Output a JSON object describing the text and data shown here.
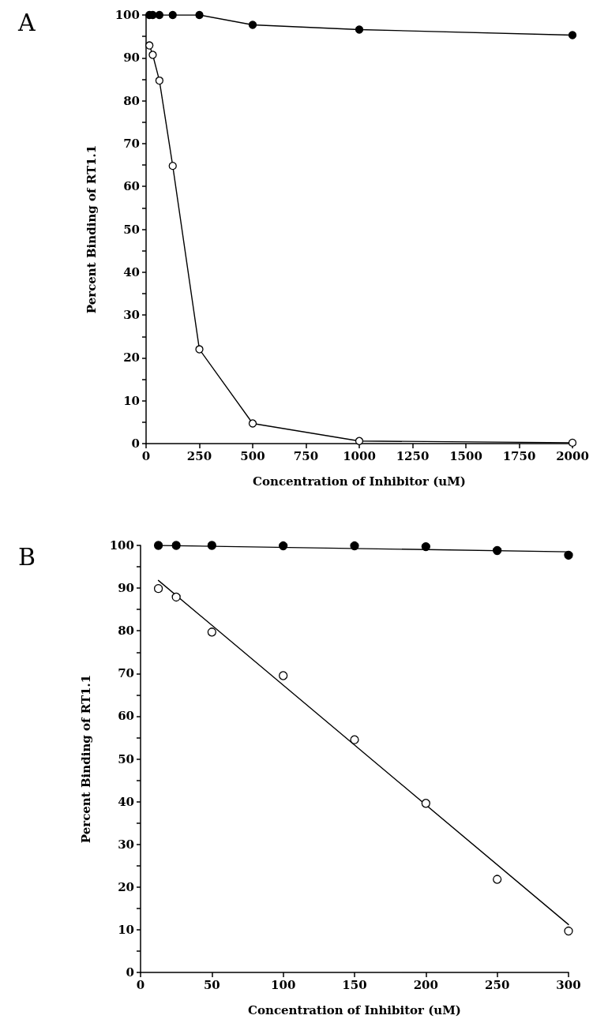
{
  "chart_data": [
    {
      "type": "line",
      "title": "A",
      "xlabel": "Concentration of Inhibitor (uM)",
      "ylabel": "Percent Binding of RT1.1",
      "marker": "circle",
      "line_style": "solid",
      "xlim": [
        0,
        2000
      ],
      "xticks": [
        0,
        250,
        500,
        750,
        1000,
        1250,
        1500,
        1750,
        2000
      ],
      "ylim": [
        0,
        100
      ],
      "yticks": [
        0,
        {
          "value": 5,
          "label": null
        },
        10,
        {
          "value": 15,
          "label": null
        },
        20,
        {
          "value": 25,
          "label": null
        },
        30,
        {
          "value": 35,
          "label": null
        },
        40,
        {
          "value": 45,
          "label": null
        },
        50,
        {
          "value": 55,
          "label": null
        },
        60,
        {
          "value": 65,
          "label": null
        },
        70,
        {
          "value": 75,
          "label": null
        },
        80,
        {
          "value": 85,
          "label": null
        },
        90,
        {
          "value": 95,
          "label": null
        },
        100
      ],
      "series": [
        {
          "color": "#000000",
          "x": [
            15.6,
            31.25,
            62.5,
            125,
            250,
            500,
            1000,
            2000
          ],
          "values": [
            100,
            100,
            100,
            100,
            100,
            97.7,
            96.6,
            95.3
          ]
        },
        {
          "color": "#ffffff",
          "x": [
            15.6,
            31.25,
            62.5,
            125,
            250,
            500,
            1000,
            2000
          ],
          "values": [
            92.9,
            90.7,
            84.7,
            64.8,
            22,
            4.7,
            0.6,
            0.2
          ]
        }
      ]
    },
    {
      "type": "scatter",
      "title": "B",
      "xlabel": "Concentration of Inhibitor (uM)",
      "ylabel": "Percent Binding of RT1.1",
      "marker": "circle",
      "line_style": "solid",
      "xlim": [
        0,
        300
      ],
      "xticks": [
        0,
        50,
        100,
        150,
        200,
        250,
        300
      ],
      "ylim": [
        0,
        100
      ],
      "yticks": [
        0,
        {
          "value": 5,
          "label": null
        },
        10,
        {
          "value": 15,
          "label": null
        },
        20,
        {
          "value": 25,
          "label": null
        },
        30,
        {
          "value": 35,
          "label": null
        },
        40,
        {
          "value": 45,
          "label": null
        },
        50,
        {
          "value": 55,
          "label": null
        },
        60,
        {
          "value": 65,
          "label": null
        },
        70,
        {
          "value": 75,
          "label": null
        },
        80,
        {
          "value": 85,
          "label": null
        },
        90,
        {
          "value": 95,
          "label": null
        },
        100
      ],
      "series": [
        {
          "color": "#000000",
          "x": [
            12.5,
            25,
            50,
            100,
            150,
            200,
            250,
            300
          ],
          "values": [
            100,
            100,
            100,
            99.9,
            99.9,
            99.7,
            98.8,
            97.7
          ]
        },
        {
          "color": "#ffffff",
          "x": [
            12.5,
            25,
            50,
            100,
            150,
            200,
            250,
            300
          ],
          "values": [
            89.9,
            87.9,
            79.7,
            69.5,
            54.5,
            39.6,
            21.8,
            9.7
          ]
        },
        {
          "type": "line",
          "marker": "none",
          "color": "#000000",
          "x": [
            12.5,
            300
          ],
          "values": [
            100,
            98.5
          ]
        },
        {
          "type": "line",
          "marker": "none",
          "color": "#000000",
          "x": [
            12.5,
            300
          ],
          "values": [
            91.8,
            11.2
          ]
        }
      ]
    }
  ]
}
